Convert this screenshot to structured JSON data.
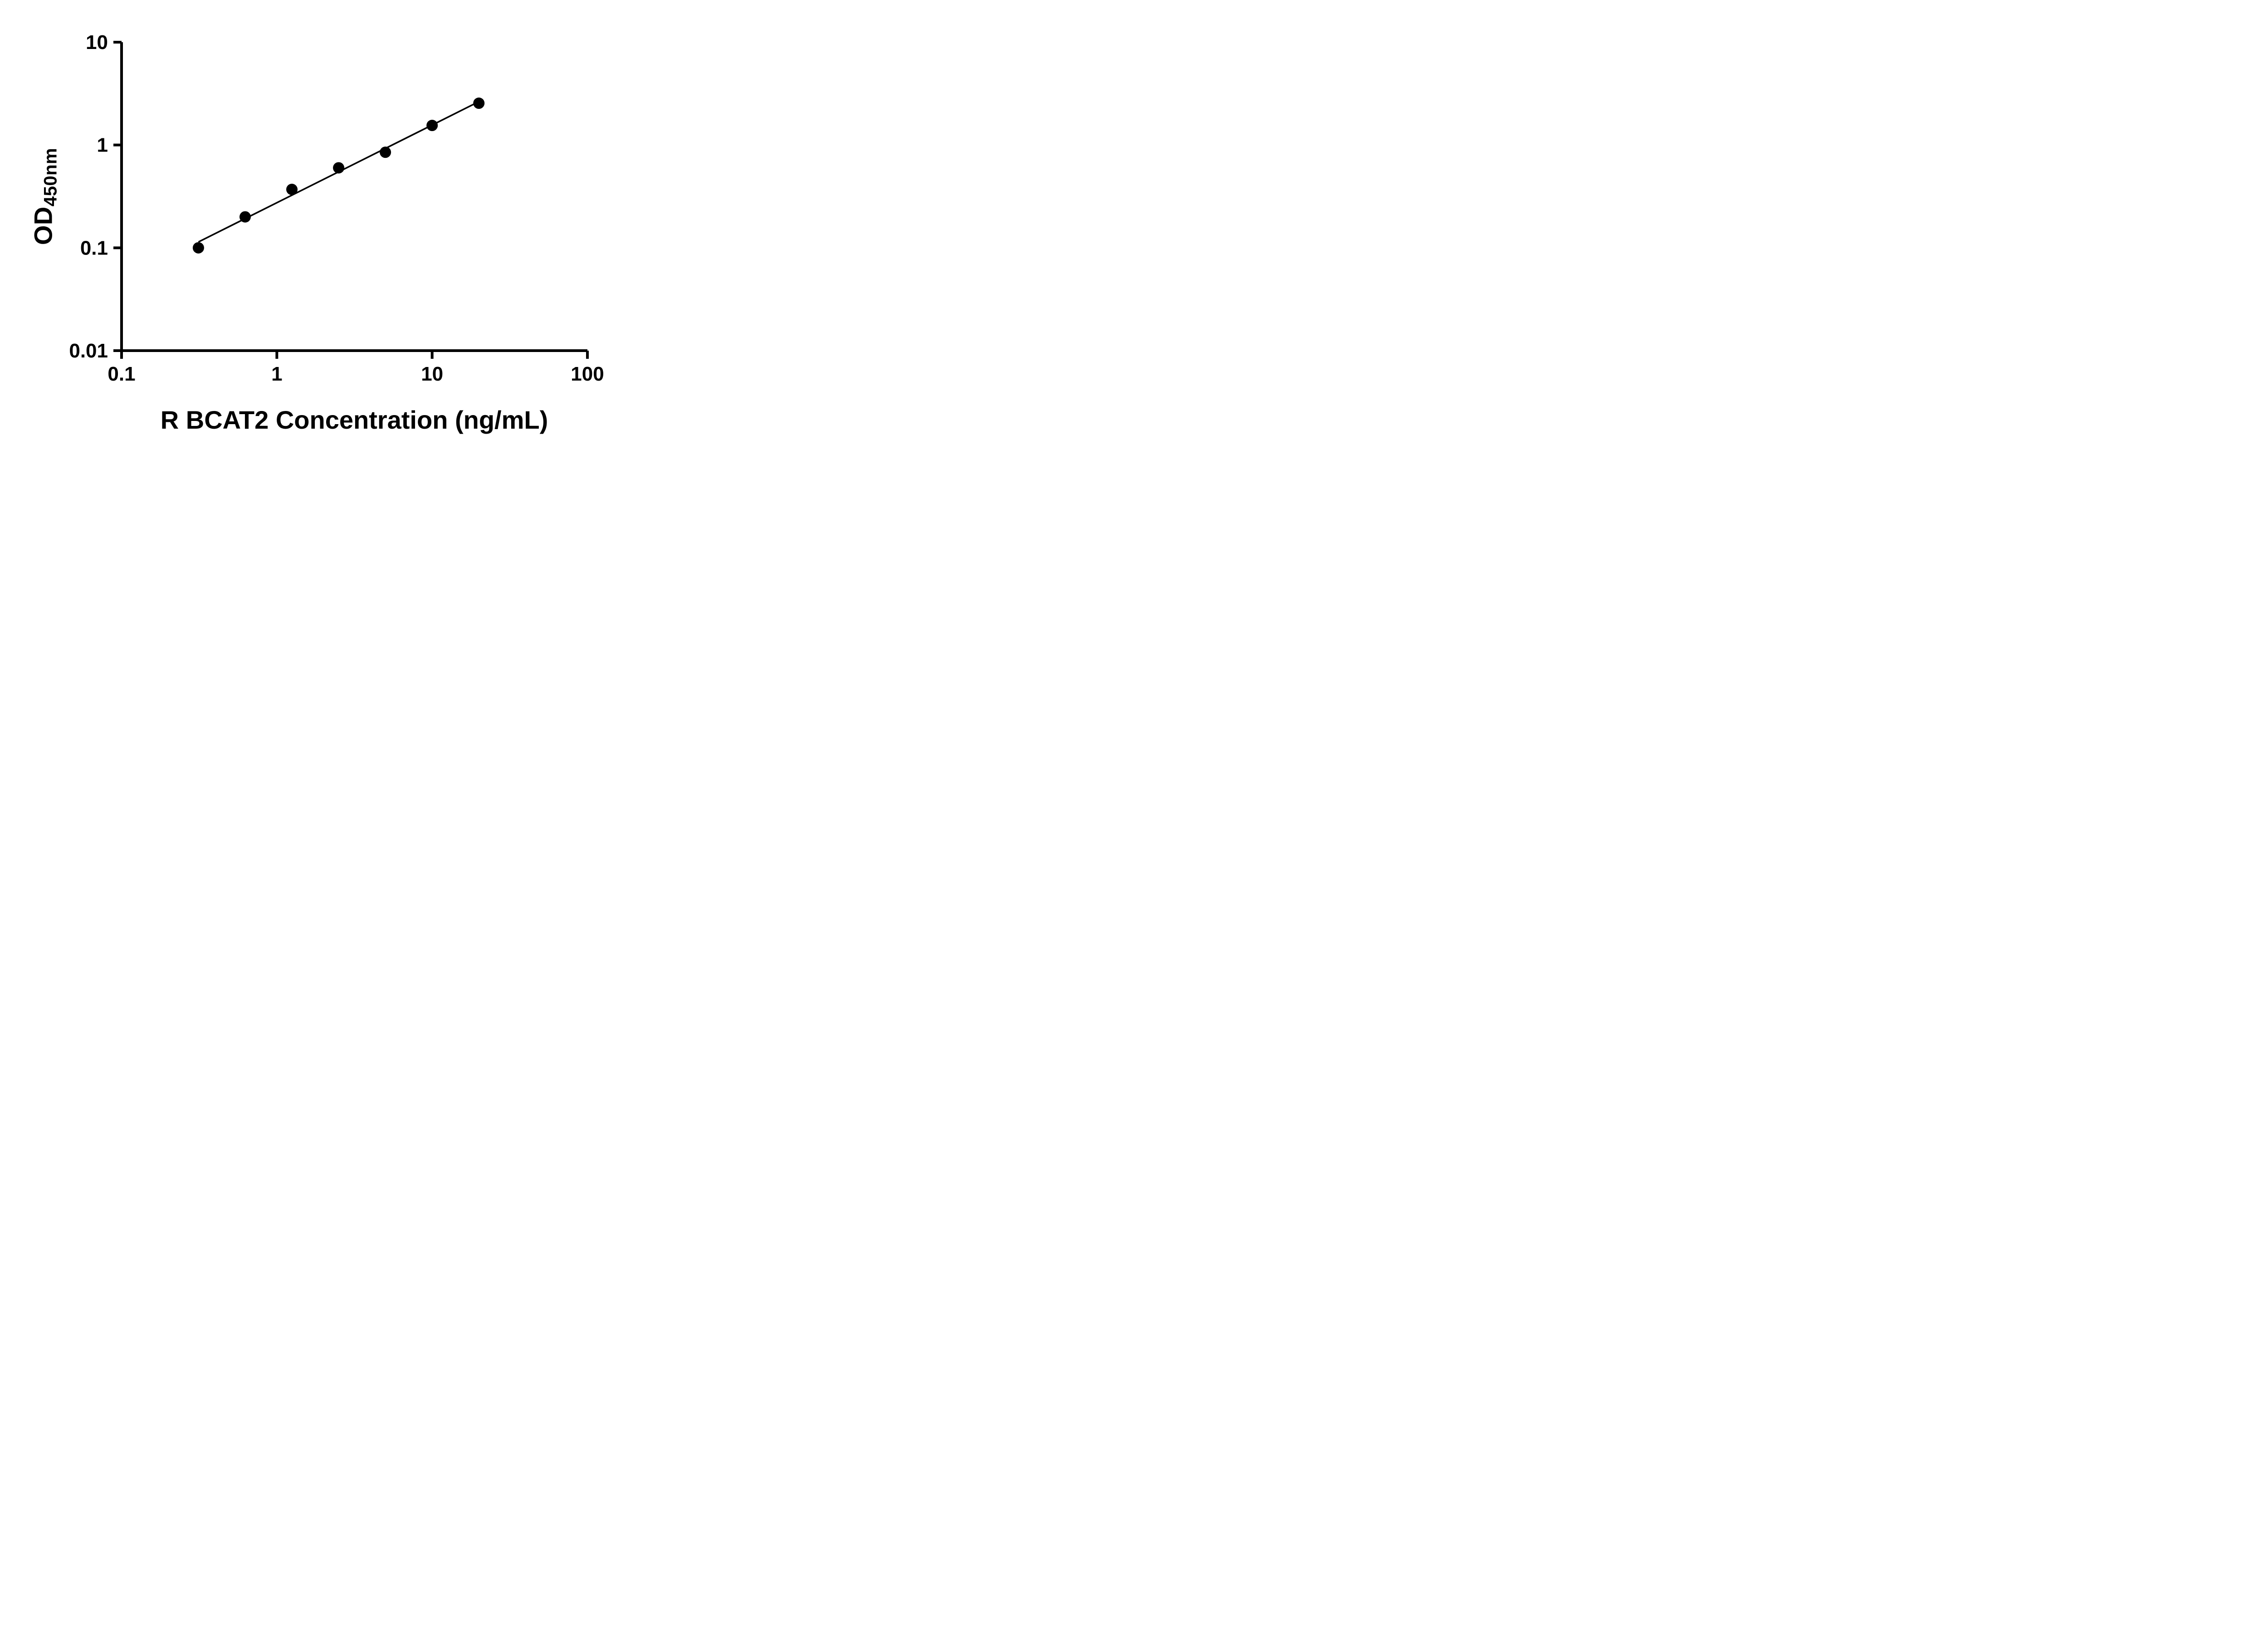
{
  "chart_data": {
    "type": "scatter",
    "title": "",
    "xlabel": "R BCAT2 Concentration (ng/mL)",
    "ylabel_main": "OD",
    "ylabel_sub": "450nm",
    "x_scale": "log",
    "y_scale": "log",
    "xlim": [
      0.1,
      100
    ],
    "ylim": [
      0.01,
      10
    ],
    "grid": false,
    "legend": null,
    "x_ticks": [
      {
        "value": 0.1,
        "label": "0.1"
      },
      {
        "value": 1,
        "label": "1"
      },
      {
        "value": 10,
        "label": "10"
      },
      {
        "value": 100,
        "label": "100"
      }
    ],
    "y_ticks": [
      {
        "value": 0.01,
        "label": "0.01"
      },
      {
        "value": 0.1,
        "label": "0.1"
      },
      {
        "value": 1,
        "label": "1"
      },
      {
        "value": 10,
        "label": "10"
      }
    ],
    "points": {
      "x": [
        0.3125,
        0.625,
        1.25,
        2.5,
        5,
        10,
        20
      ],
      "y": [
        0.1,
        0.2,
        0.37,
        0.6,
        0.85,
        1.55,
        2.55
      ]
    },
    "trend_line": {
      "x": [
        0.3125,
        20
      ],
      "y": [
        0.114,
        2.64
      ]
    },
    "marker_color": "#000000",
    "line_color": "#000000",
    "axis_color": "#000000"
  }
}
